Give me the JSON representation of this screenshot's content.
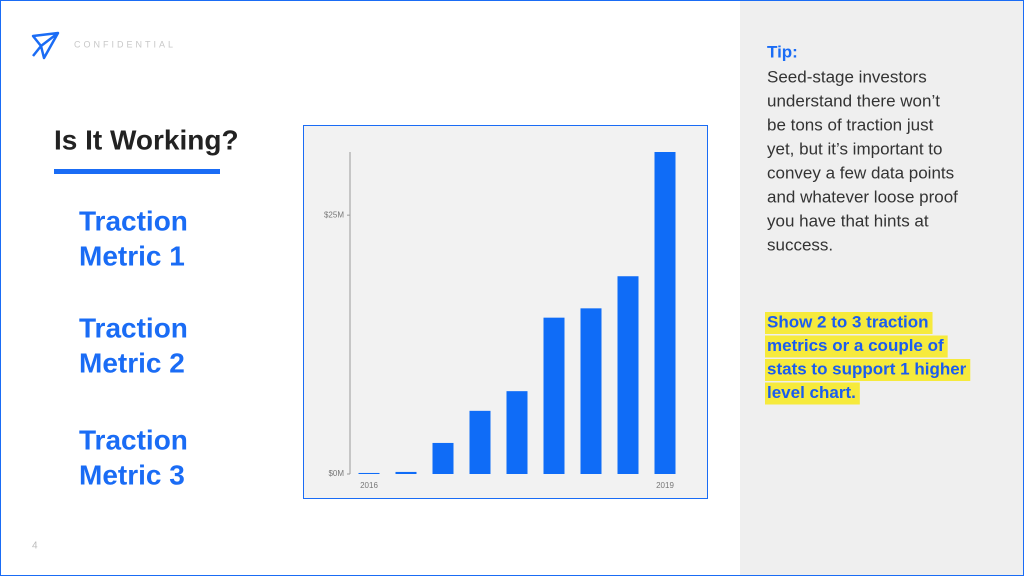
{
  "slide": {
    "confidential": "CONFIDENTIAL",
    "title": "Is It Working?",
    "metrics": [
      [
        "Traction",
        "Metric 1"
      ],
      [
        "Traction",
        "Metric 2"
      ],
      [
        "Traction",
        "Metric 3"
      ]
    ],
    "page_number": "4",
    "tip_heading": "Tip:",
    "tip_lines": [
      "Seed-stage investors",
      "understand there won’t",
      "be tons of traction just",
      "yet, but it’s important to",
      "convey a few data points",
      "and whatever loose proof",
      "you have that hints at",
      "success."
    ],
    "highlight_lines": [
      "Show 2 to 3 traction",
      "metrics or a couple of",
      "stats to support 1 higher",
      "level chart."
    ]
  },
  "chart_data": {
    "type": "bar",
    "categories": [
      "2016",
      null,
      null,
      null,
      null,
      null,
      null,
      null,
      "2019"
    ],
    "values": [
      0.1,
      0.2,
      3.0,
      6.1,
      8.0,
      15.1,
      16.0,
      19.1,
      31.1
    ],
    "color": "#0f6cf7",
    "ylim": [
      0,
      31.1
    ],
    "yticks": [
      {
        "value": 0,
        "label": "$0M"
      },
      {
        "value": 25,
        "label": "$25M"
      }
    ]
  }
}
